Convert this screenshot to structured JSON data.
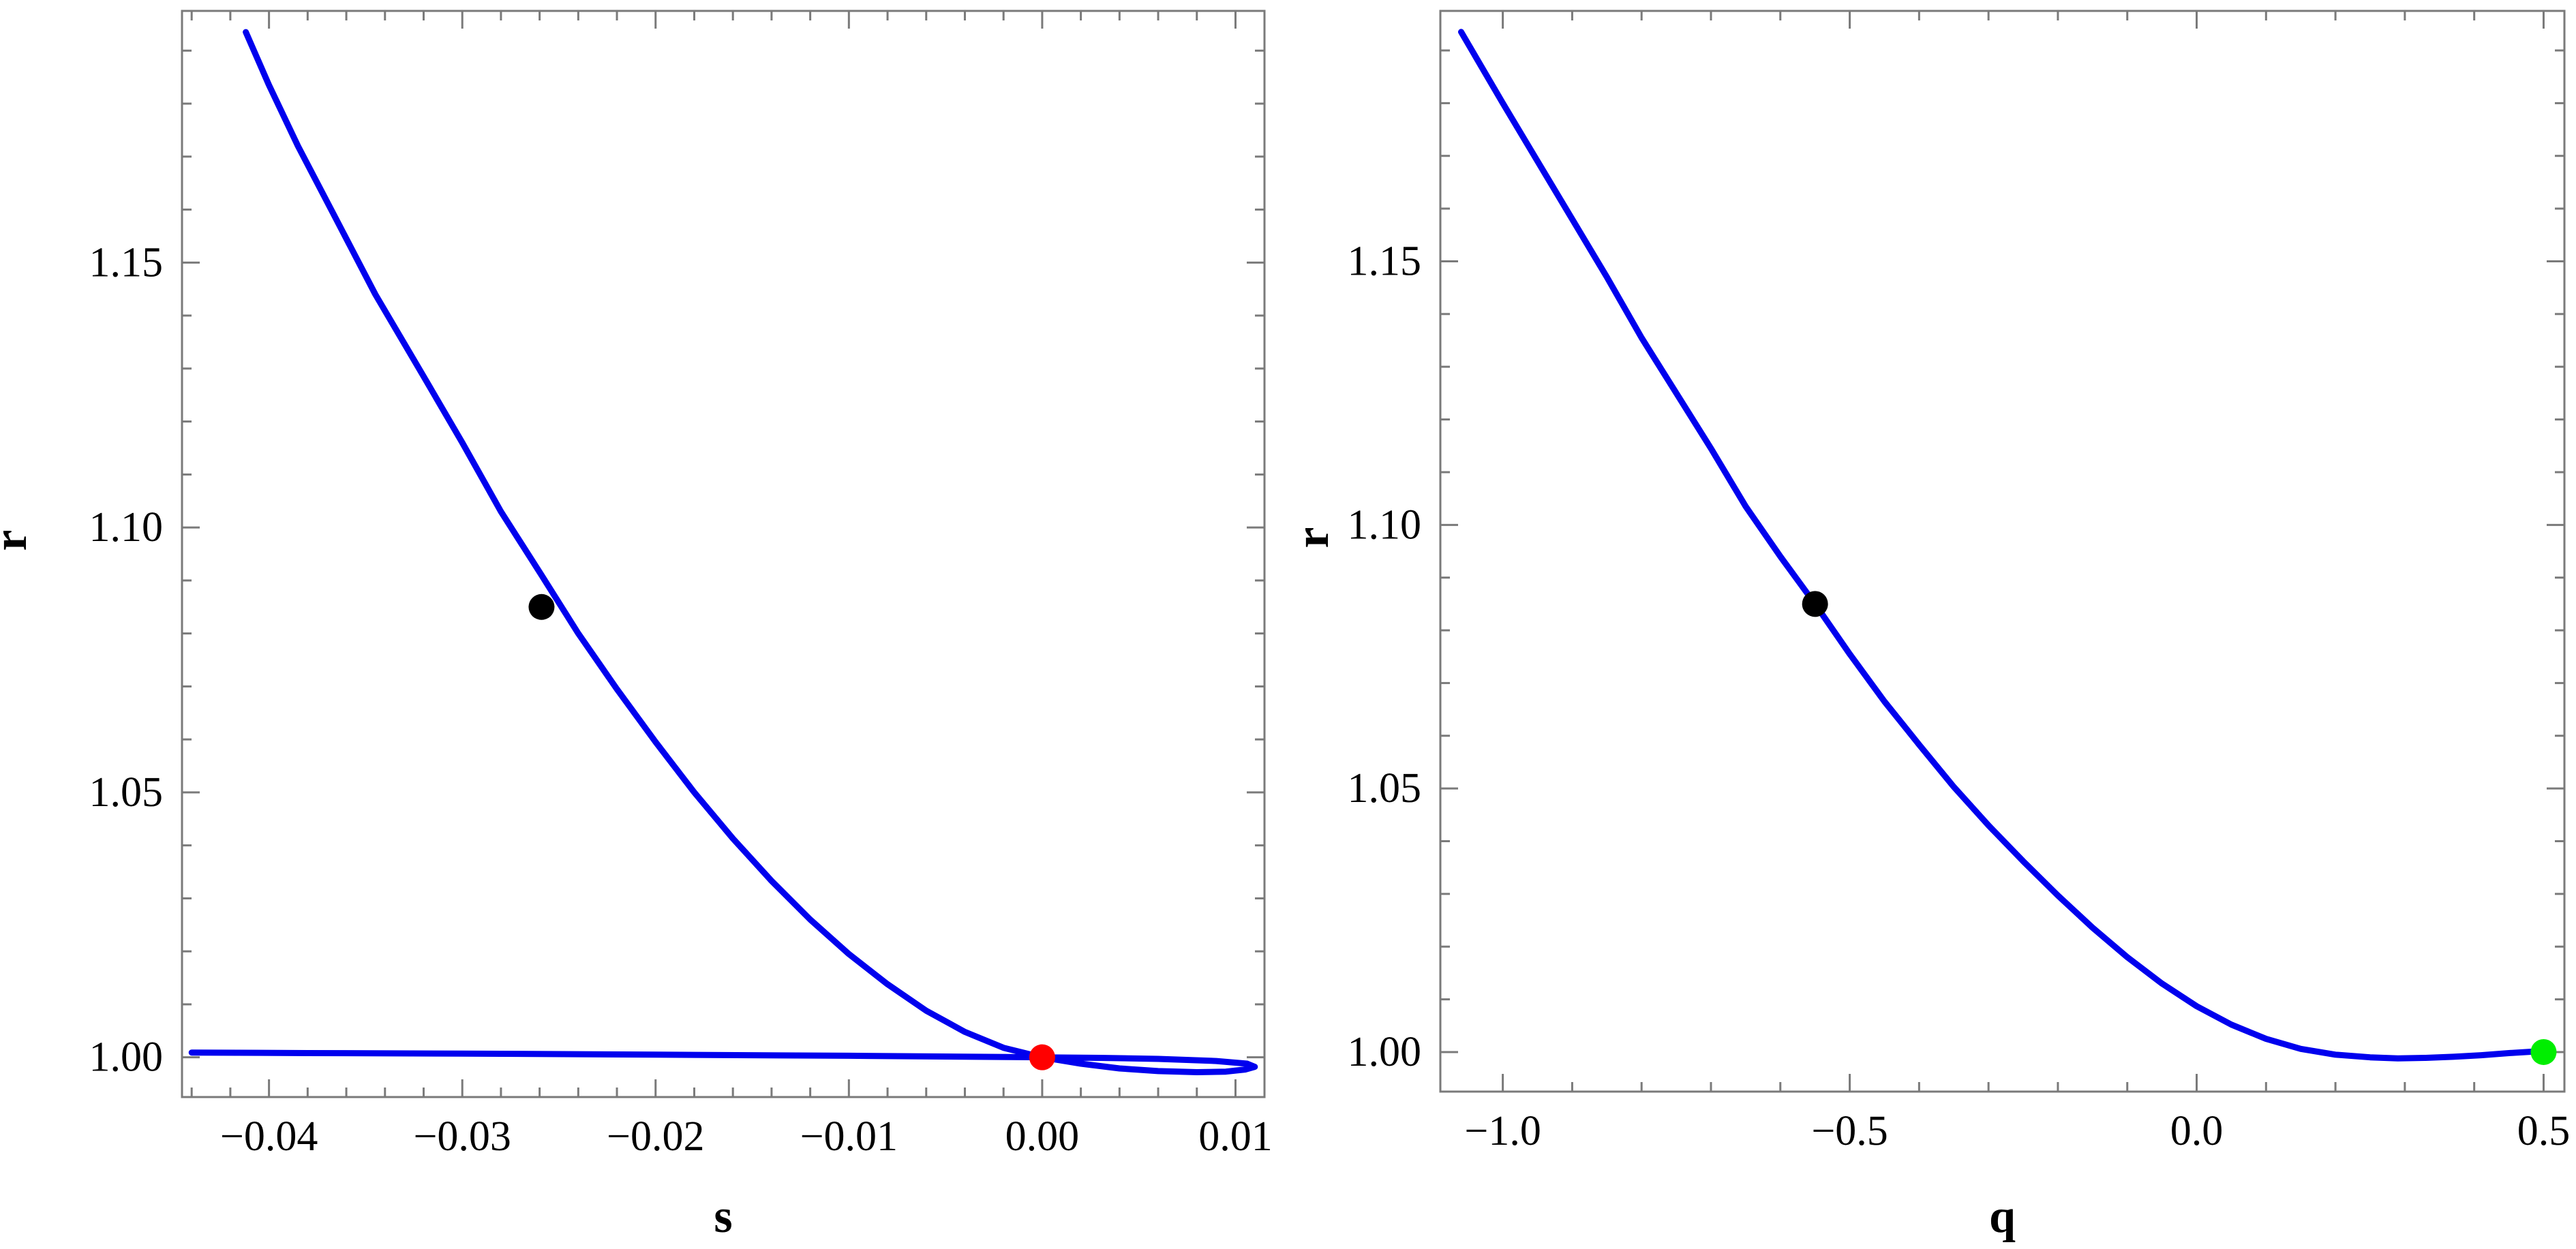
{
  "chart_data": [
    {
      "type": "line",
      "xlabel": "s",
      "ylabel": "r",
      "xlim": [
        -0.0445,
        0.0115
      ],
      "ylim": [
        0.9925,
        1.1975
      ],
      "x_ticks": [
        {
          "value": -0.04,
          "label": "−0.04"
        },
        {
          "value": -0.03,
          "label": "−0.03"
        },
        {
          "value": -0.02,
          "label": "−0.02"
        },
        {
          "value": -0.01,
          "label": "−0.01"
        },
        {
          "value": 0.0,
          "label": "0.00"
        },
        {
          "value": 0.01,
          "label": "0.01"
        }
      ],
      "y_ticks": [
        {
          "value": 1.0,
          "label": "1.00"
        },
        {
          "value": 1.05,
          "label": "1.05"
        },
        {
          "value": 1.1,
          "label": "1.10"
        },
        {
          "value": 1.15,
          "label": "1.15"
        }
      ],
      "grid": false,
      "series": [
        {
          "color": "#0000ee",
          "points": [
            [
              -0.0412,
              1.1935
            ],
            [
              -0.04,
              1.1835
            ],
            [
              -0.0385,
              1.172
            ],
            [
              -0.0365,
              1.158
            ],
            [
              -0.0345,
              1.144
            ],
            [
              -0.032,
              1.1285
            ],
            [
              -0.03,
              1.116
            ],
            [
              -0.028,
              1.103
            ],
            [
              -0.0259,
              1.091
            ],
            [
              -0.024,
              1.08
            ],
            [
              -0.022,
              1.0695
            ],
            [
              -0.02,
              1.0595
            ],
            [
              -0.018,
              1.05
            ],
            [
              -0.016,
              1.0413
            ],
            [
              -0.014,
              1.0333
            ],
            [
              -0.012,
              1.026
            ],
            [
              -0.01,
              1.0195
            ],
            [
              -0.008,
              1.0138
            ],
            [
              -0.006,
              1.0088
            ],
            [
              -0.004,
              1.0048
            ],
            [
              -0.002,
              1.0018
            ],
            [
              0.0,
              1.0
            ],
            [
              0.002,
              0.9988
            ],
            [
              0.004,
              0.9979
            ],
            [
              0.006,
              0.9974
            ],
            [
              0.008,
              0.9972
            ],
            [
              0.0095,
              0.9973
            ],
            [
              0.0105,
              0.9977
            ],
            [
              0.011,
              0.9982
            ],
            [
              0.0106,
              0.9988
            ],
            [
              0.009,
              0.9993
            ],
            [
              0.006,
              0.9997
            ],
            [
              0.003,
              0.9999
            ],
            [
              0.0,
              1.0
            ],
            [
              -0.01,
              1.0003
            ],
            [
              -0.02,
              1.0005
            ],
            [
              -0.03,
              1.0007
            ],
            [
              -0.038,
              1.0008
            ],
            [
              -0.044,
              1.0009
            ]
          ]
        }
      ],
      "markers": [
        {
          "x": -0.0259,
          "y": 1.085,
          "color": "#000000"
        },
        {
          "x": 0.0,
          "y": 1.0,
          "color": "#ff0000"
        }
      ]
    },
    {
      "type": "line",
      "xlabel": "q",
      "ylabel": "r",
      "xlim": [
        -1.09,
        0.53
      ],
      "ylim": [
        0.9925,
        1.1975
      ],
      "x_ticks": [
        {
          "value": -1.0,
          "label": "−1.0"
        },
        {
          "value": -0.5,
          "label": "−0.5"
        },
        {
          "value": 0.0,
          "label": "0.0"
        },
        {
          "value": 0.5,
          "label": "0.5"
        }
      ],
      "y_ticks": [
        {
          "value": 1.0,
          "label": "1.00"
        },
        {
          "value": 1.05,
          "label": "1.05"
        },
        {
          "value": 1.1,
          "label": "1.10"
        },
        {
          "value": 1.15,
          "label": "1.15"
        }
      ],
      "grid": false,
      "series": [
        {
          "color": "#0000ee",
          "points": [
            [
              -1.06,
              1.1935
            ],
            [
              -1.0,
              1.18
            ],
            [
              -0.95,
              1.169
            ],
            [
              -0.9,
              1.158
            ],
            [
              -0.85,
              1.147
            ],
            [
              -0.8,
              1.1355
            ],
            [
              -0.75,
              1.125
            ],
            [
              -0.7,
              1.1145
            ],
            [
              -0.65,
              1.1035
            ],
            [
              -0.6,
              1.094
            ],
            [
              -0.55,
              1.085
            ],
            [
              -0.5,
              1.0755
            ],
            [
              -0.45,
              1.0665
            ],
            [
              -0.4,
              1.0583
            ],
            [
              -0.35,
              1.0503
            ],
            [
              -0.3,
              1.043
            ],
            [
              -0.25,
              1.0362
            ],
            [
              -0.2,
              1.0297
            ],
            [
              -0.15,
              1.0236
            ],
            [
              -0.1,
              1.018
            ],
            [
              -0.05,
              1.013
            ],
            [
              0.0,
              1.0087
            ],
            [
              0.05,
              1.0052
            ],
            [
              0.1,
              1.0025
            ],
            [
              0.15,
              1.0006
            ],
            [
              0.2,
              0.9995
            ],
            [
              0.25,
              0.999
            ],
            [
              0.29,
              0.9988
            ],
            [
              0.33,
              0.9989
            ],
            [
              0.37,
              0.9991
            ],
            [
              0.41,
              0.9994
            ],
            [
              0.45,
              0.9998
            ],
            [
              0.5,
              1.0002
            ]
          ]
        }
      ],
      "markers": [
        {
          "x": -0.55,
          "y": 1.085,
          "color": "#000000"
        },
        {
          "x": 0.5,
          "y": 1.0,
          "color": "#00ee00"
        }
      ]
    }
  ]
}
